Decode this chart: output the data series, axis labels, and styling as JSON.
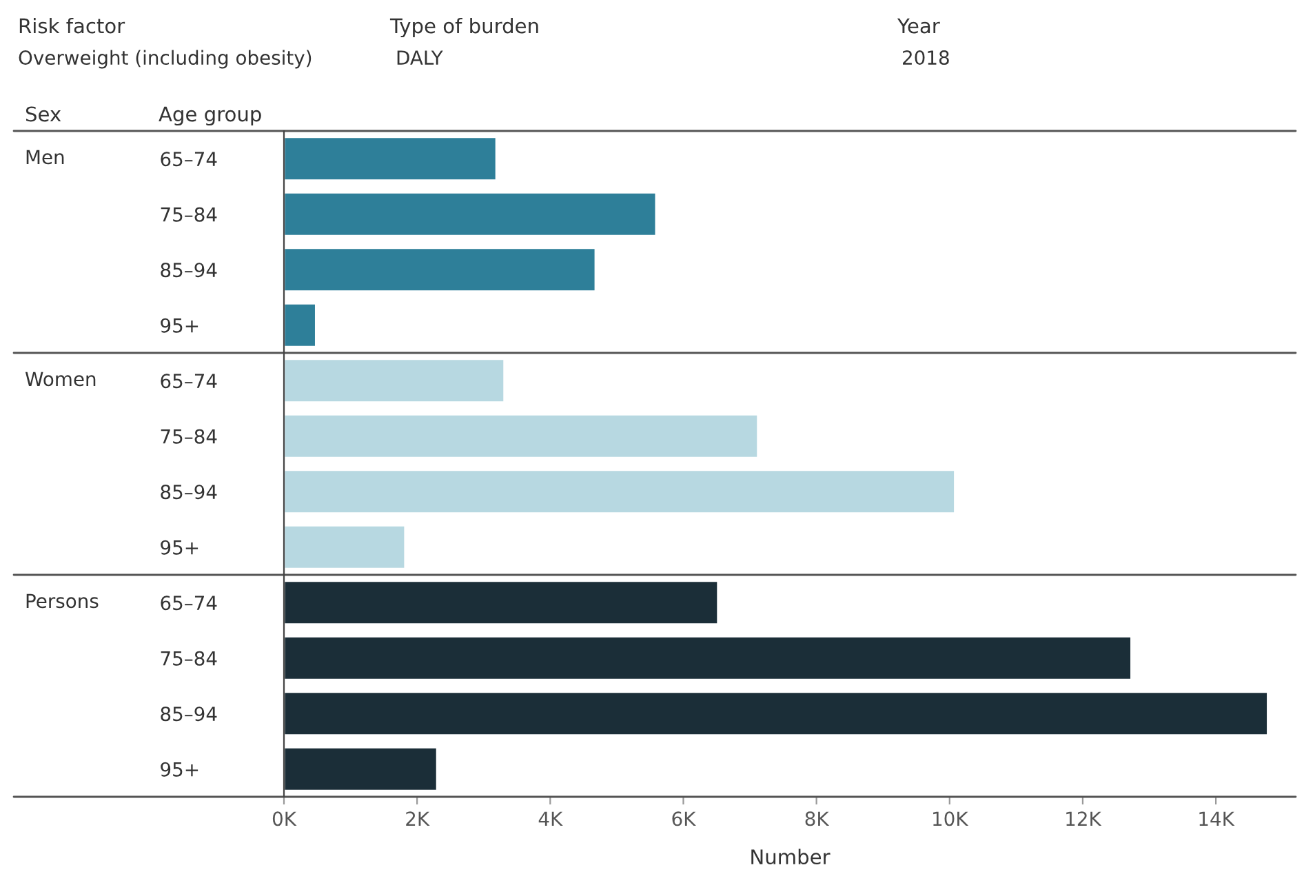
{
  "chart_data": {
    "type": "bar",
    "orientation": "horizontal",
    "categories": [
      "65–74",
      "75–84",
      "85–94",
      "95+",
      "65–74",
      "75–84",
      "85–94",
      "95+",
      "65–74",
      "75–84",
      "85–94",
      "95+"
    ],
    "series": [
      {
        "color": "#2e7f99",
        "values": [
          3190,
          5590,
          4680,
          480,
          null,
          null,
          null,
          null,
          null,
          null,
          null,
          null
        ]
      },
      {
        "color": "#b7d8e1",
        "values": [
          null,
          null,
          null,
          null,
          3310,
          7120,
          10080,
          1820,
          null,
          null,
          null,
          null
        ]
      },
      {
        "color": "#1b2e38",
        "values": [
          null,
          null,
          null,
          null,
          null,
          null,
          null,
          null,
          6520,
          12730,
          14780,
          2300
        ]
      }
    ],
    "xlim": [
      0,
      15200
    ],
    "xticks": [
      {
        "value": 0,
        "label": "0K"
      },
      {
        "value": 2000,
        "label": "2K"
      },
      {
        "value": 4000,
        "label": "4K"
      },
      {
        "value": 6000,
        "label": "6K"
      },
      {
        "value": 8000,
        "label": "8K"
      },
      {
        "value": 10000,
        "label": "10K"
      },
      {
        "value": 12000,
        "label": "12K"
      },
      {
        "value": 14000,
        "label": "14K"
      }
    ],
    "xlabel": "Number",
    "annotations": [
      "Risk factor",
      "Overweight (including obesity)",
      "Type of burden",
      "DALY",
      "Year",
      "2018",
      "Sex",
      "Age group",
      "Men",
      "Women",
      "Persons"
    ]
  }
}
